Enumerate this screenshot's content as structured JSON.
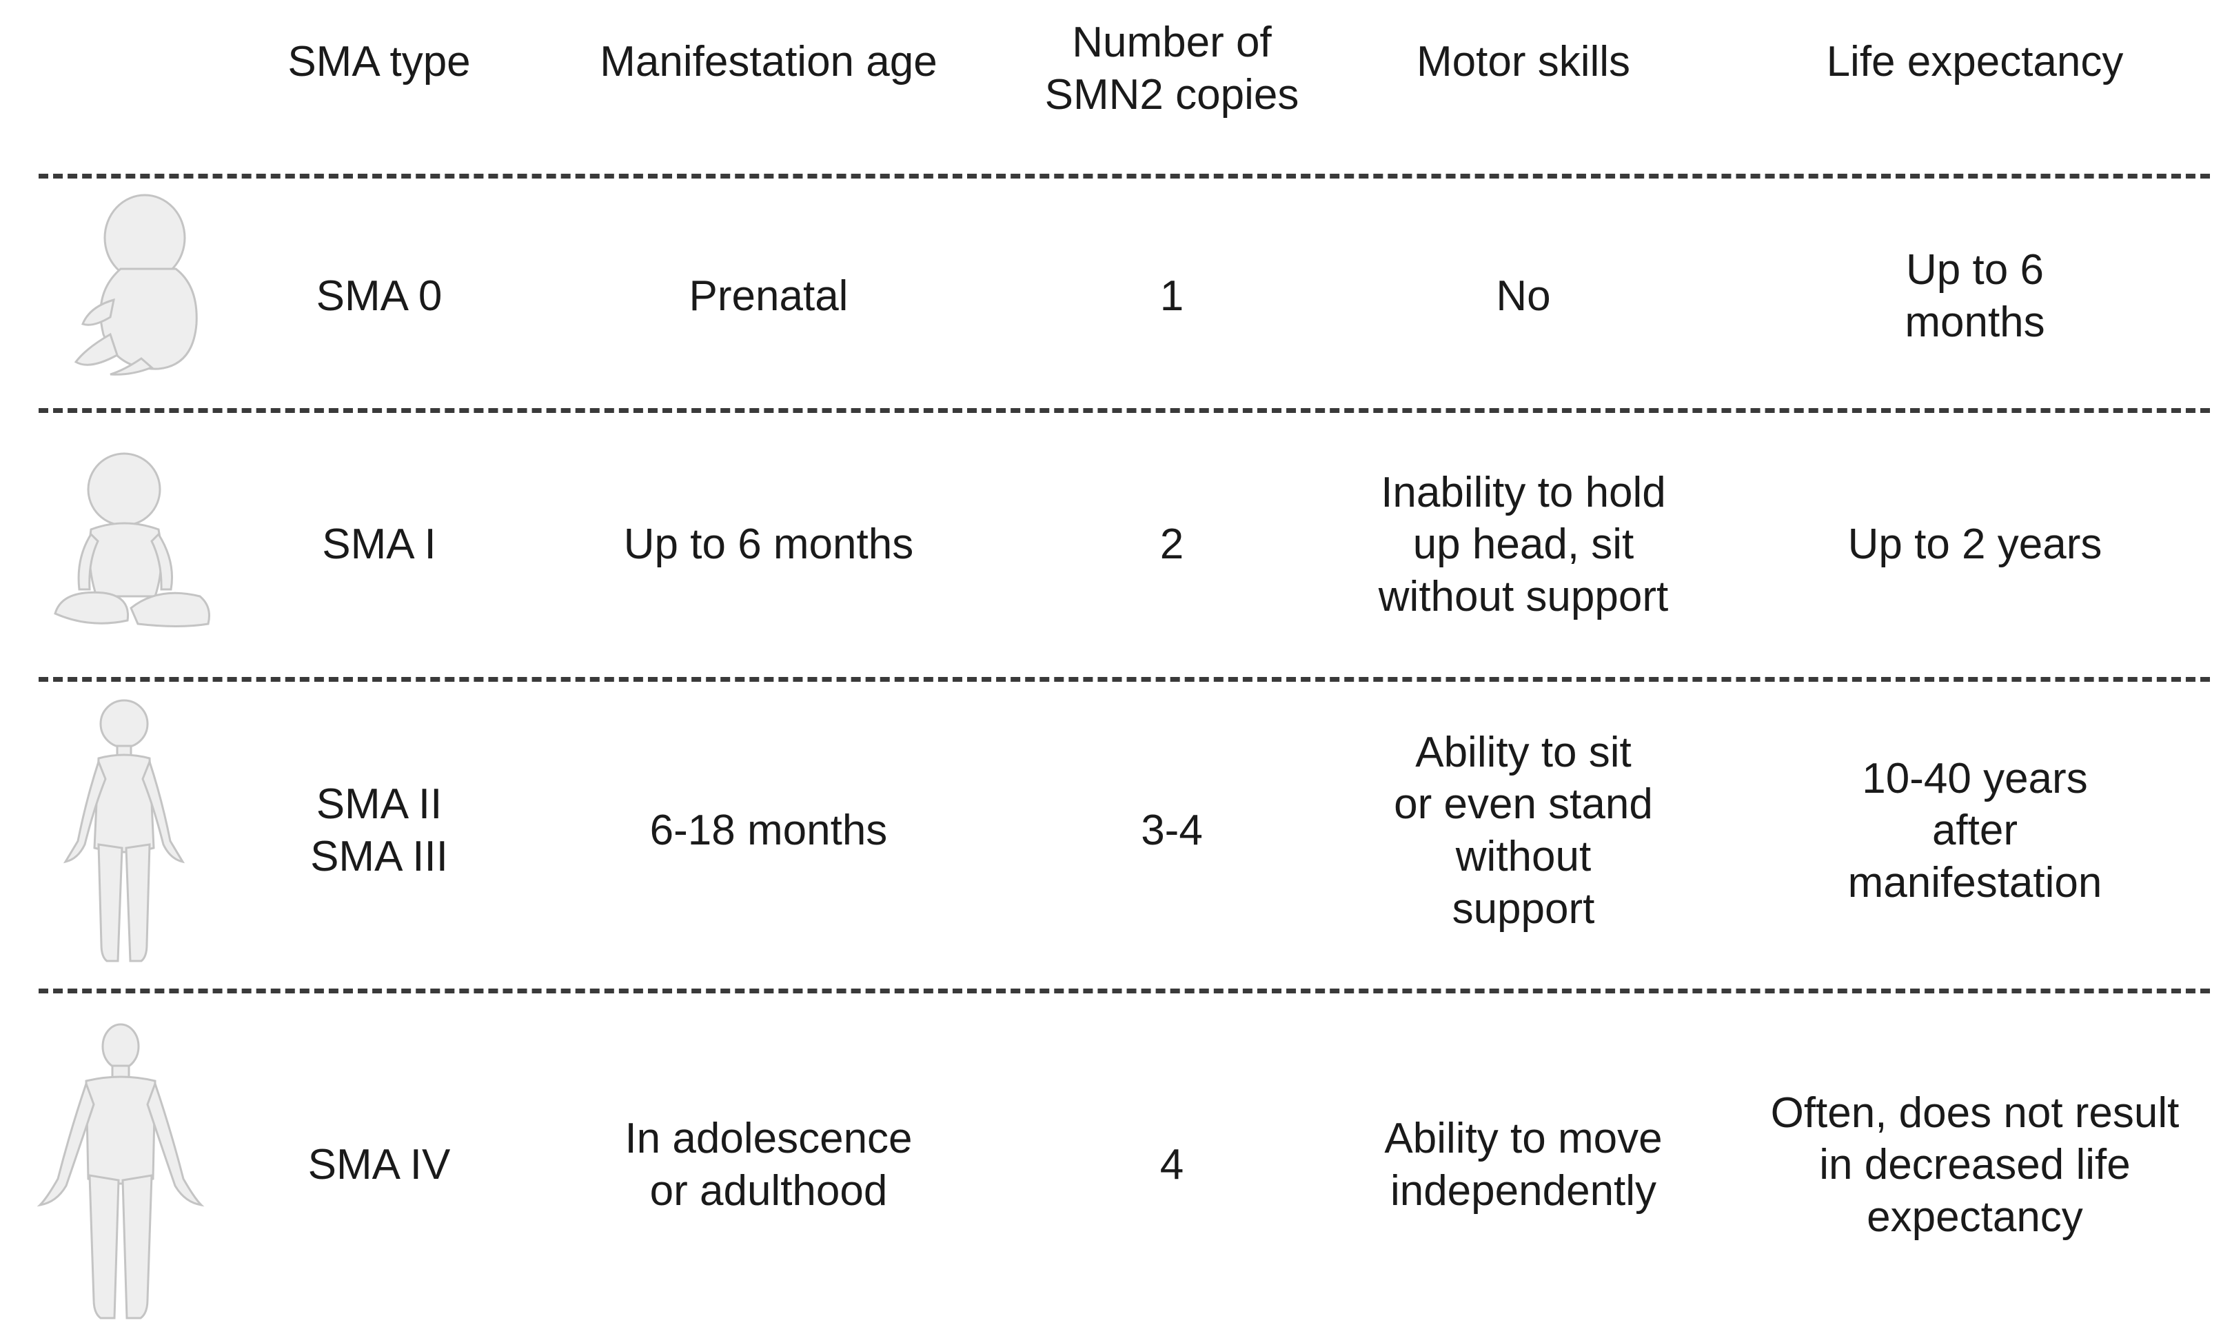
{
  "table": {
    "headers": [
      "SMA type",
      "Manifestation age",
      "Number of\nSMN2 copies",
      "Motor skills",
      "Life expectancy"
    ],
    "rows": [
      {
        "figure": "fetus-figure",
        "cells": [
          "SMA 0",
          "Prenatal",
          "1",
          "No",
          "Up to 6\nmonths"
        ]
      },
      {
        "figure": "infant-figure",
        "cells": [
          "SMA I",
          "Up to 6 months",
          "2",
          "Inability to hold\nup head, sit\nwithout support",
          "Up to 2 years"
        ]
      },
      {
        "figure": "child-figure",
        "cells": [
          "SMA II\nSMA III",
          "6-18 months",
          "3-4",
          "Ability to sit\nor even stand\nwithout\nsupport",
          "10-40 years\nafter\nmanifestation"
        ]
      },
      {
        "figure": "adult-figure",
        "cells": [
          "SMA IV",
          "In adolescence\nor adulthood",
          "4",
          "Ability to move\nindependently",
          "Often, does not result\nin decreased life\nexpectancy"
        ]
      }
    ]
  },
  "colors": {
    "text": "#1a1a1a",
    "divider": "#3a3a3a",
    "figure_fill": "#eeeeee",
    "figure_stroke": "#c4c4c4"
  }
}
